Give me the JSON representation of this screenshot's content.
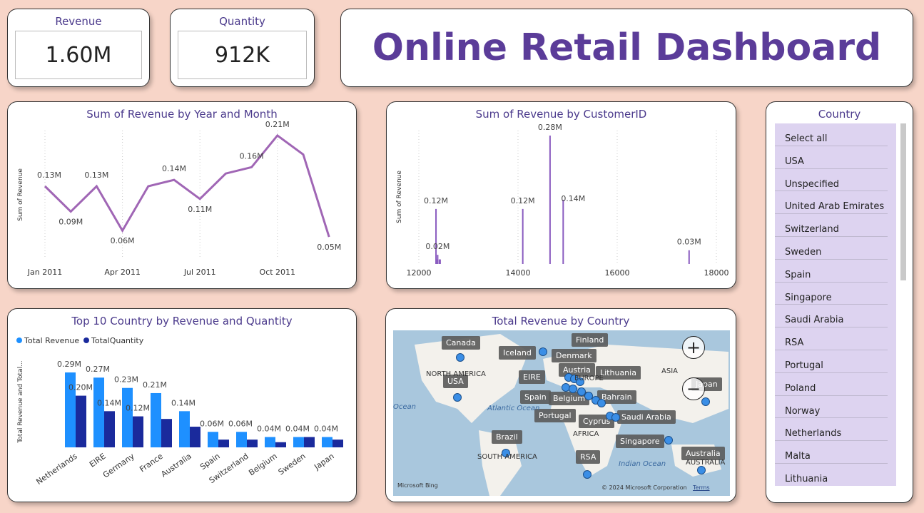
{
  "kpis": {
    "revenue": {
      "label": "Revenue",
      "value": "1.60M"
    },
    "quantity": {
      "label": "Quantity",
      "value": "912K"
    }
  },
  "title": "Online Retail Dashboard",
  "line_chart": {
    "title": "Sum of Revenue by Year and Month",
    "ylabel": "Sum of Revenue",
    "x_ticks": [
      "Jan 2011",
      "Apr 2011",
      "Jul 2011",
      "Oct 2011"
    ]
  },
  "customer_chart": {
    "title": "Sum of Revenue by CustomerID",
    "ylabel": "Sum of Revenue",
    "x_ticks": [
      "12000",
      "14000",
      "16000",
      "18000"
    ]
  },
  "bar_chart": {
    "title": "Top 10 Country by Revenue and Quantity",
    "ylabel": "Total Revenue and Total...",
    "legend": [
      "Total Revenue",
      "TotalQuantity"
    ]
  },
  "map": {
    "title": "Total Revenue by Country",
    "labels": [
      "Canada",
      "Finland",
      "Iceland",
      "Denmark",
      "Austria",
      "Lithuania",
      "EIRE",
      "USA",
      "Spain",
      "Belgium",
      "Bahrain",
      "Portugal",
      "Saudi Arabia",
      "Cyprus",
      "Brazil",
      "Singapore",
      "RSA",
      "Australia",
      "Japan"
    ],
    "region_text": [
      "NORTH AMERICA",
      "ASIA",
      "AFRICA",
      "SOUTH AMERICA",
      "AUSTRALIA",
      "EUROPE"
    ],
    "oceans": [
      "Atlantic Ocean",
      "Indian Ocean",
      "Ocean"
    ],
    "bing": "Microsoft Bing",
    "copyright": "© 2024 Microsoft Corporation",
    "terms": "Terms"
  },
  "slicer": {
    "title": "Country",
    "items": [
      "Select all",
      "USA",
      "Unspecified",
      "United Arab Emirates",
      "Switzerland",
      "Sweden",
      "Spain",
      "Singapore",
      "Saudi Arabia",
      "RSA",
      "Portugal",
      "Poland",
      "Norway",
      "Netherlands",
      "Malta",
      "Lithuania"
    ]
  },
  "chart_data": [
    {
      "type": "line",
      "title": "Sum of Revenue by Year and Month",
      "ylabel": "Sum of Revenue",
      "x": [
        "2011-01",
        "2011-02",
        "2011-03",
        "2011-04",
        "2011-05",
        "2011-06",
        "2011-07",
        "2011-08",
        "2011-09",
        "2011-10",
        "2011-11",
        "2011-12"
      ],
      "values": [
        0.13,
        0.09,
        0.13,
        0.06,
        0.13,
        0.14,
        0.11,
        0.15,
        0.16,
        0.21,
        0.18,
        0.05
      ],
      "data_labels": [
        "0.13M",
        "0.09M",
        "0.13M",
        "0.06M",
        "",
        "0.14M",
        "0.11M",
        "",
        "0.16M",
        "0.21M",
        "",
        "0.05M"
      ],
      "color": "#a066b5"
    },
    {
      "type": "bar",
      "title": "Sum of Revenue by CustomerID",
      "ylabel": "Sum of Revenue",
      "x": [
        12346,
        12360,
        12380,
        12415,
        12430,
        14096,
        14646,
        14911,
        17450
      ],
      "values": [
        0.12,
        0.01,
        0.02,
        0.01,
        0.01,
        0.12,
        0.28,
        0.14,
        0.03
      ],
      "data_labels": [
        "0.12M",
        "",
        "0.02M",
        "",
        "",
        "0.12M",
        "0.28M",
        "0.14M",
        "0.03M"
      ],
      "xlim": [
        11800,
        18200
      ],
      "color": "#8a5cc0"
    },
    {
      "type": "bar",
      "title": "Top 10 Country by Revenue and Quantity",
      "categories": [
        "Netherlands",
        "EIRE",
        "Germany",
        "France",
        "Australia",
        "Spain",
        "Switzerland",
        "Belgium",
        "Sweden",
        "Japan"
      ],
      "series": [
        {
          "name": "Total Revenue",
          "values": [
            0.29,
            0.27,
            0.23,
            0.21,
            0.14,
            0.06,
            0.06,
            0.04,
            0.04,
            0.04
          ],
          "color": "#1e90ff"
        },
        {
          "name": "TotalQuantity",
          "values": [
            0.2,
            0.14,
            0.12,
            0.11,
            0.08,
            0.03,
            0.03,
            0.02,
            0.04,
            0.03
          ],
          "color": "#1a2a9c"
        }
      ],
      "revenue_labels": [
        "0.29M",
        "0.27M",
        "0.23M",
        "0.21M",
        "0.14M",
        "0.06M",
        "0.06M",
        "0.04M",
        "0.04M",
        "0.04M"
      ],
      "quantity_labels": [
        "0.20M",
        "0.14M",
        "0.12M",
        "",
        "",
        "",
        "",
        "",
        "",
        ""
      ]
    }
  ]
}
